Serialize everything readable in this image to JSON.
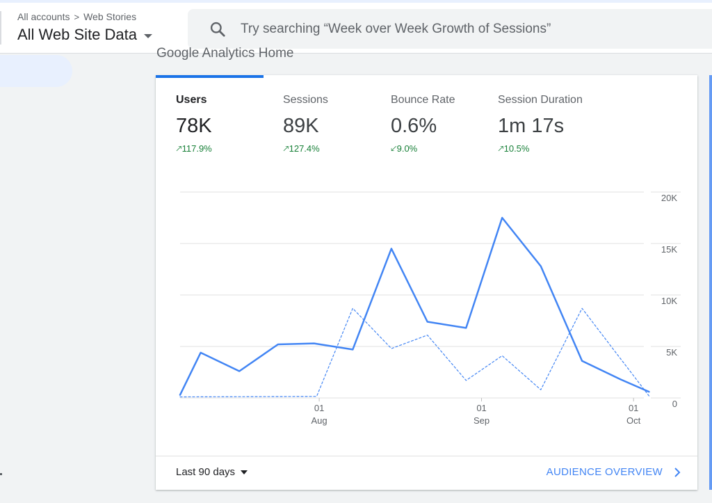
{
  "header": {
    "breadcrumb": [
      "All accounts",
      "Web Stories"
    ],
    "property_name": "All Web Site Data",
    "search_placeholder": "Try searching “Week over Week Growth of Sessions”"
  },
  "page_title": "Google Analytics Home",
  "metrics": [
    {
      "label": "Users",
      "value": "78K",
      "change": "117.9%",
      "direction": "up"
    },
    {
      "label": "Sessions",
      "value": "89K",
      "change": "127.4%",
      "direction": "up"
    },
    {
      "label": "Bounce Rate",
      "value": "0.6%",
      "change": "9.0%",
      "direction": "down"
    },
    {
      "label": "Session Duration",
      "value": "1m 17s",
      "change": "10.5%",
      "direction": "up"
    }
  ],
  "colors": {
    "accent": "#1a73e8",
    "line": "#4285f4",
    "positive": "#188038"
  },
  "chart_data": {
    "type": "line",
    "y_ticks": [
      "20K",
      "15K",
      "10K",
      "5K",
      "0"
    ],
    "ylim": [
      0,
      20000
    ],
    "x_labels": [
      {
        "day": "01",
        "month": "Aug"
      },
      {
        "day": "01",
        "month": "Sep"
      },
      {
        "day": "01",
        "month": "Oct"
      }
    ],
    "x_range": [
      0,
      90
    ],
    "x_label_positions": [
      27,
      58.5,
      88
    ],
    "series": [
      {
        "style": "solid",
        "x": [
          0,
          4,
          11.5,
          19,
          26,
          33.5,
          41,
          48,
          55.5,
          62.5,
          70,
          78,
          85.5,
          91
        ],
        "values": [
          300,
          4400,
          2600,
          5200,
          5300,
          4700,
          14500,
          7400,
          6800,
          17500,
          12800,
          3600,
          1800,
          600
        ]
      },
      {
        "style": "dashed",
        "x": [
          0,
          26.5,
          33.5,
          41,
          48,
          55.5,
          62.5,
          70,
          78,
          85.5,
          91
        ],
        "values": [
          100,
          150,
          8700,
          4800,
          6100,
          1700,
          4100,
          800,
          8700,
          3800,
          200
        ]
      }
    ]
  },
  "footer": {
    "date_range": "Last 90 days",
    "link": "AUDIENCE OVERVIEW"
  }
}
